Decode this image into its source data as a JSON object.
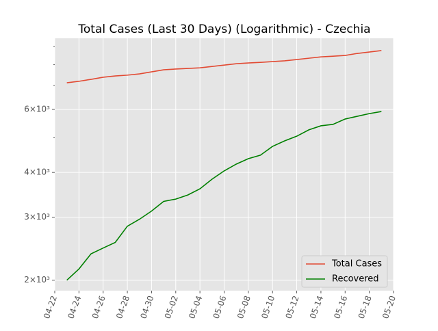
{
  "chart_data": {
    "type": "line",
    "title": "Total Cases (Last 30 Days) (Logarithmic) - Czechia",
    "x": [
      "04-23",
      "04-24",
      "04-25",
      "04-26",
      "04-27",
      "04-28",
      "04-29",
      "04-30",
      "05-01",
      "05-02",
      "05-03",
      "05-04",
      "05-05",
      "05-06",
      "05-07",
      "05-08",
      "05-09",
      "05-10",
      "05-11",
      "05-12",
      "05-13",
      "05-14",
      "05-15",
      "05-16",
      "05-17",
      "05-18",
      "05-19"
    ],
    "series": [
      {
        "name": "Total Cases",
        "color": "#e24a33",
        "values": [
          7120,
          7190,
          7280,
          7380,
          7440,
          7480,
          7540,
          7640,
          7740,
          7780,
          7810,
          7840,
          7910,
          7980,
          8050,
          8090,
          8120,
          8160,
          8200,
          8270,
          8340,
          8410,
          8450,
          8490,
          8600,
          8680,
          8760
        ]
      },
      {
        "name": "Recovered",
        "color": "#008000",
        "values": [
          2000,
          2150,
          2370,
          2460,
          2550,
          2830,
          2960,
          3120,
          3320,
          3370,
          3460,
          3600,
          3830,
          4040,
          4220,
          4370,
          4470,
          4730,
          4900,
          5050,
          5260,
          5400,
          5450,
          5640,
          5740,
          5840,
          5920
        ]
      }
    ],
    "xlim": [
      "04-22",
      "05-20"
    ],
    "xticks": [
      "04-22",
      "04-24",
      "04-26",
      "04-28",
      "04-30",
      "05-02",
      "05-04",
      "05-06",
      "05-08",
      "05-10",
      "05-12",
      "05-14",
      "05-16",
      "05-18",
      "05-20"
    ],
    "ylim": [
      1870,
      9480
    ],
    "log_y": true,
    "yticks": [
      {
        "value": 2000,
        "label": "2×10³"
      },
      {
        "value": 3000,
        "label": "3×10³"
      },
      {
        "value": 4000,
        "label": "4×10³"
      },
      {
        "value": 6000,
        "label": "6×10³"
      }
    ],
    "minor_yticks": [
      5000,
      7000,
      8000,
      9000
    ],
    "grid": true,
    "legend": "lower right"
  }
}
